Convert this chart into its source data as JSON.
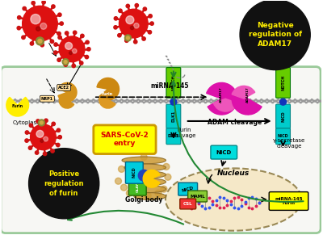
{
  "bg_color": "#ffffff",
  "cell_color": "#f2f2ee",
  "cell_border": "#5aaa5a",
  "nucleus_color": "#f5e8c8",
  "neg_reg_text": "Negative\nregulation of\nADAM17",
  "pos_reg_text": "Positive\nregulation\nof furin",
  "sars_entry_text": "SARS-CoV-2\nentry",
  "golgi_label": "Golgi body",
  "nucleus_label": "Nucleus",
  "mirna145_label": "miRNA-145",
  "adam_cleavage": "ADAM cleavage",
  "furin_cleavage": "Furin\ncleavage",
  "gamma_cleavage": "γ-secretase\ncleavage",
  "cytoplasm_label": "Cytoplasm"
}
